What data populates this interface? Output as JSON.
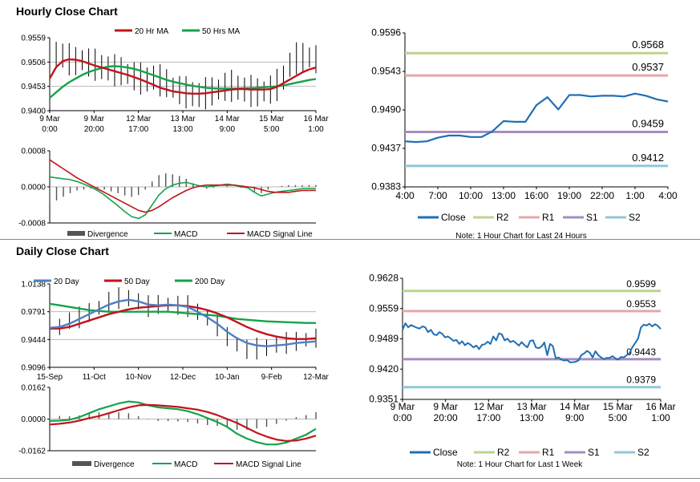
{
  "sections": [
    {
      "title": "Hourly Close Chart"
    },
    {
      "title": "Daily Close Chart"
    }
  ],
  "colors": {
    "close": "#1f6fb5",
    "r2": "#bcd48e",
    "r1": "#e6a8a6",
    "s1": "#a58cc2",
    "s2": "#8fc8d8",
    "ma_short": "#c0141c",
    "ma_long": "#14a34a",
    "ma_20day": "#4f7fc2",
    "divergence": "#555555",
    "macd": "#14a34a",
    "signal": "#c0141c",
    "price_bars": "#000000"
  },
  "chart_data": [
    {
      "id": "hourly_price",
      "type": "line",
      "legend": [
        "20 Hr MA",
        "50 Hrs MA"
      ],
      "legend_placement": "top",
      "ylim": [
        0.94,
        0.9559
      ],
      "y_ticks": [
        "0.9559",
        "0.9506",
        "0.9453",
        "0.9400"
      ],
      "x_ticks": [
        [
          "9 Mar",
          "0:00"
        ],
        [
          "9 Mar",
          "20:00"
        ],
        [
          "12 Mar",
          "17:00"
        ],
        [
          "13 Mar",
          "13:00"
        ],
        [
          "14 Mar",
          "9:00"
        ],
        [
          "15 Mar",
          "5:00"
        ],
        [
          "16 Mar",
          "1:00"
        ]
      ],
      "grid": "horizontal",
      "close": [
        0.9516,
        0.9524,
        0.952,
        0.9512,
        0.9508,
        0.951,
        0.9505,
        0.95,
        0.9495,
        0.9492,
        0.9488,
        0.9486,
        0.948,
        0.9475,
        0.947,
        0.9468,
        0.9472,
        0.9466,
        0.946,
        0.945,
        0.9445,
        0.944,
        0.9436,
        0.9434,
        0.9438,
        0.9442,
        0.9446,
        0.9452,
        0.9454,
        0.945,
        0.9446,
        0.9443,
        0.944,
        0.9442,
        0.9446,
        0.9456,
        0.9472,
        0.95,
        0.9514,
        0.9517,
        0.9516,
        0.9512
      ],
      "ma_short": [
        0.947,
        0.9495,
        0.9508,
        0.9512,
        0.9511,
        0.9508,
        0.9503,
        0.9498,
        0.9494,
        0.949,
        0.9486,
        0.9482,
        0.9478,
        0.9473,
        0.9468,
        0.9462,
        0.9456,
        0.945,
        0.9446,
        0.9442,
        0.944,
        0.9438,
        0.9437,
        0.9437,
        0.9438,
        0.944,
        0.9442,
        0.9444,
        0.9446,
        0.9447,
        0.9447,
        0.9446,
        0.9446,
        0.9446,
        0.9447,
        0.9452,
        0.946,
        0.9468,
        0.9476,
        0.9484,
        0.949,
        0.9494
      ],
      "ma_long": [
        0.9428,
        0.944,
        0.9452,
        0.9462,
        0.947,
        0.9478,
        0.9484,
        0.9489,
        0.9493,
        0.9496,
        0.9497,
        0.9496,
        0.9494,
        0.9491,
        0.9487,
        0.9482,
        0.9477,
        0.9472,
        0.9467,
        0.9463,
        0.946,
        0.9457,
        0.9454,
        0.9452,
        0.945,
        0.9449,
        0.9448,
        0.9448,
        0.9448,
        0.9448,
        0.9449,
        0.9449,
        0.945,
        0.9451,
        0.9452,
        0.9453,
        0.9455,
        0.9458,
        0.9461,
        0.9464,
        0.9467,
        0.9469
      ]
    },
    {
      "id": "hourly_macd",
      "type": "line",
      "legend": [
        "Divergence",
        "MACD",
        "MACD Signal Line"
      ],
      "legend_placement": "bottom",
      "ylim": [
        -0.0008,
        0.0008
      ],
      "y_ticks": [
        "0.0008",
        "0.0000",
        "-0.0008"
      ],
      "grid": "horizontal",
      "macd": [
        0.00022,
        0.0002,
        0.00018,
        0.00016,
        0.00012,
        6e-05,
        0.0,
        -8e-05,
        -0.00018,
        -0.0003,
        -0.00042,
        -0.00055,
        -0.00066,
        -0.0007,
        -0.00062,
        -0.0004,
        -0.00018,
        -4e-05,
        4e-05,
        8e-05,
        0.0001,
        6e-05,
        2e-05,
        0.0,
        2e-05,
        4e-05,
        6e-05,
        4e-05,
        0.0,
        -2e-05,
        -0.00012,
        -0.0002,
        -0.00016,
        -0.00012,
        -0.0001,
        -8e-05,
        -6e-05,
        -4e-05,
        -4e-05,
        -4e-05
      ],
      "signal": [
        0.0006,
        0.0005,
        0.0004,
        0.0003,
        0.0002,
        0.00012,
        4e-05,
        -4e-05,
        -0.00012,
        -0.0002,
        -0.00028,
        -0.00036,
        -0.00044,
        -0.00052,
        -0.00056,
        -0.00052,
        -0.00044,
        -0.00034,
        -0.00024,
        -0.00016,
        -8e-05,
        -2e-05,
        2e-05,
        4e-05,
        4e-05,
        4e-05,
        4e-05,
        4e-05,
        2e-05,
        0.0,
        -2e-05,
        -6e-05,
        -0.0001,
        -0.00012,
        -0.00012,
        -0.00012,
        -0.0001,
        -8e-05,
        -8e-05,
        -8e-05
      ],
      "divergence": [
        -0.00038,
        -0.0003,
        -0.00022,
        -0.00014,
        -8e-05,
        -6e-05,
        -4e-05,
        -4e-05,
        -6e-05,
        -0.0001,
        -0.00014,
        -0.00019,
        -0.00022,
        -0.00018,
        -6e-05,
        0.00012,
        0.00026,
        0.0003,
        0.00028,
        0.00024,
        0.00018,
        8e-05,
        0.0,
        -4e-05,
        -2e-05,
        0.0,
        2e-05,
        0.0,
        -2e-05,
        -2e-05,
        -0.0001,
        -0.00014,
        -6e-05,
        0.0,
        2e-05,
        4e-05,
        4e-05,
        4e-05,
        4e-05,
        4e-05
      ]
    },
    {
      "id": "hourly_close",
      "type": "line",
      "legend": [
        "Close",
        "R2",
        "R1",
        "S1",
        "S2"
      ],
      "legend_placement": "bottom",
      "note": "Note: 1 Hour Chart for Last 24 Hours",
      "ylim": [
        0.9383,
        0.9596
      ],
      "y_ticks": [
        "0.9596",
        "0.9543",
        "0.9490",
        "0.9437",
        "0.9383"
      ],
      "x_ticks": [
        "4:00",
        "7:00",
        "10:00",
        "13:00",
        "16:00",
        "19:00",
        "22:00",
        "1:00",
        "4:00"
      ],
      "grid": "none",
      "levels": [
        {
          "name": "R2",
          "value": 0.9568,
          "label": "0.9568"
        },
        {
          "name": "R1",
          "value": 0.9537,
          "label": "0.9537"
        },
        {
          "name": "S1",
          "value": 0.9459,
          "label": "0.9459"
        },
        {
          "name": "S2",
          "value": 0.9412,
          "label": "0.9412"
        }
      ],
      "close": [
        0.9446,
        0.9445,
        0.9446,
        0.9451,
        0.9454,
        0.9454,
        0.9452,
        0.9452,
        0.946,
        0.9474,
        0.9473,
        0.9473,
        0.9496,
        0.9507,
        0.949,
        0.951,
        0.951,
        0.9508,
        0.9509,
        0.9509,
        0.9508,
        0.9512,
        0.9509,
        0.9504,
        0.9501
      ]
    },
    {
      "id": "daily_price",
      "type": "line",
      "legend": [
        "20 Day",
        "50 Day",
        "200 Day"
      ],
      "legend_placement": "top",
      "ylim": [
        0.9096,
        1.0138
      ],
      "y_ticks": [
        "1.0138",
        "0.9791",
        "0.9444",
        "0.9096"
      ],
      "x_ticks": [
        "15-Sep",
        "11-Oct",
        "10-Nov",
        "12-Dec",
        "10-Jan",
        "9-Feb",
        "12-Mar"
      ],
      "grid": "horizontal",
      "close": [
        0.956,
        0.96,
        0.968,
        0.972,
        0.978,
        0.984,
        0.992,
        0.996,
        0.996,
        0.992,
        0.986,
        0.988,
        0.988,
        0.987,
        0.986,
        0.979,
        0.972,
        0.962,
        0.948,
        0.938,
        0.932,
        0.933,
        0.934,
        0.938,
        0.94,
        0.942,
        0.944,
        0.946
      ],
      "ma_20day": [
        0.959,
        0.96,
        0.964,
        0.97,
        0.976,
        0.982,
        0.988,
        0.992,
        0.994,
        0.992,
        0.988,
        0.987,
        0.988,
        0.987,
        0.985,
        0.979,
        0.972,
        0.964,
        0.954,
        0.946,
        0.94,
        0.937,
        0.936,
        0.937,
        0.938,
        0.94,
        0.941,
        0.942
      ],
      "ma_50day": [
        0.958,
        0.958,
        0.96,
        0.964,
        0.968,
        0.972,
        0.976,
        0.979,
        0.982,
        0.984,
        0.985,
        0.986,
        0.987,
        0.987,
        0.986,
        0.984,
        0.981,
        0.977,
        0.972,
        0.966,
        0.96,
        0.955,
        0.951,
        0.948,
        0.946,
        0.945,
        0.945,
        0.946
      ],
      "ma_200day": [
        0.989,
        0.987,
        0.985,
        0.983,
        0.981,
        0.98,
        0.979,
        0.979,
        0.979,
        0.979,
        0.979,
        0.979,
        0.979,
        0.978,
        0.977,
        0.976,
        0.975,
        0.974,
        0.972,
        0.97,
        0.969,
        0.968,
        0.967,
        0.9665,
        0.966,
        0.9655,
        0.965,
        0.965
      ]
    },
    {
      "id": "daily_macd",
      "type": "line",
      "legend": [
        "Divergence",
        "MACD",
        "MACD Signal Line"
      ],
      "legend_placement": "bottom",
      "ylim": [
        -0.0162,
        0.0162
      ],
      "y_ticks": [
        "0.0162",
        "0.0000",
        "-0.0162"
      ],
      "grid": "horizontal",
      "macd": [
        -0.001,
        -0.0008,
        -0.0004,
        0.001,
        0.003,
        0.005,
        0.0065,
        0.008,
        0.009,
        0.0085,
        0.007,
        0.006,
        0.0055,
        0.005,
        0.004,
        0.0025,
        0.0005,
        -0.0015,
        -0.004,
        -0.0075,
        -0.01,
        -0.0118,
        -0.013,
        -0.013,
        -0.012,
        -0.01,
        -0.008,
        -0.005
      ],
      "signal": [
        -0.0028,
        -0.0024,
        -0.0018,
        -0.0008,
        0.0005,
        0.0015,
        0.003,
        0.0045,
        0.006,
        0.007,
        0.0072,
        0.007,
        0.0066,
        0.0062,
        0.0055,
        0.0048,
        0.0036,
        0.002,
        0.0,
        -0.002,
        -0.0045,
        -0.007,
        -0.009,
        -0.0105,
        -0.0112,
        -0.011,
        -0.01,
        -0.0085
      ],
      "divergence": [
        0.0018,
        0.0016,
        0.0014,
        0.0018,
        0.0025,
        0.0035,
        0.0035,
        0.0035,
        0.003,
        0.0015,
        -0.0002,
        -0.001,
        -0.0011,
        -0.0012,
        -0.0015,
        -0.0023,
        -0.0031,
        -0.0035,
        -0.004,
        -0.0055,
        -0.0055,
        -0.0048,
        -0.004,
        -0.0025,
        -0.0008,
        0.001,
        0.002,
        0.0035
      ]
    },
    {
      "id": "daily_close",
      "type": "line",
      "legend": [
        "Close",
        "R2",
        "R1",
        "S1",
        "S2"
      ],
      "legend_placement": "bottom",
      "note": "Note: 1 Hour Chart for Last 1 Week",
      "ylim": [
        0.9351,
        0.9628
      ],
      "y_ticks": [
        "0.9628",
        "0.9559",
        "0.9489",
        "0.9420",
        "0.9351"
      ],
      "x_ticks": [
        [
          "9 Mar",
          "0:00"
        ],
        [
          "9 Mar",
          "20:00"
        ],
        [
          "12 Mar",
          "17:00"
        ],
        [
          "13 Mar",
          "13:00"
        ],
        [
          "14 Mar",
          "9:00"
        ],
        [
          "15 Mar",
          "5:00"
        ],
        [
          "16 Mar",
          "1:00"
        ]
      ],
      "grid": "none",
      "levels": [
        {
          "name": "R2",
          "value": 0.9599,
          "label": "0.9599"
        },
        {
          "name": "R1",
          "value": 0.9553,
          "label": "0.9553"
        },
        {
          "name": "S1",
          "value": 0.9443,
          "label": "0.9443"
        },
        {
          "name": "S2",
          "value": 0.9379,
          "label": "0.9379"
        }
      ],
      "close": [
        0.951,
        0.9525,
        0.9516,
        0.9521,
        0.9518,
        0.9515,
        0.9513,
        0.9518,
        0.9516,
        0.9505,
        0.951,
        0.95,
        0.9498,
        0.9505,
        0.9501,
        0.9493,
        0.9495,
        0.949,
        0.9485,
        0.9487,
        0.9478,
        0.9484,
        0.9475,
        0.948,
        0.9476,
        0.947,
        0.9474,
        0.9466,
        0.9476,
        0.9477,
        0.9483,
        0.9478,
        0.9495,
        0.9486,
        0.9502,
        0.95,
        0.9486,
        0.949,
        0.9482,
        0.9485,
        0.948,
        0.9474,
        0.9482,
        0.9475,
        0.947,
        0.9485,
        0.9486,
        0.947,
        0.9468,
        0.9472,
        0.9481,
        0.9452,
        0.9478,
        0.9473,
        0.9445,
        0.9447,
        0.9442,
        0.944,
        0.9441,
        0.9436,
        0.9436,
        0.9437,
        0.944,
        0.9452,
        0.9456,
        0.9462,
        0.9458,
        0.9447,
        0.9461,
        0.9452,
        0.9447,
        0.9443,
        0.9446,
        0.9446,
        0.945,
        0.9445,
        0.9442,
        0.9448,
        0.9447,
        0.9452,
        0.9457,
        0.947,
        0.948,
        0.949,
        0.9515,
        0.9522,
        0.952,
        0.9524,
        0.9518,
        0.9523,
        0.9519,
        0.9512
      ]
    }
  ]
}
